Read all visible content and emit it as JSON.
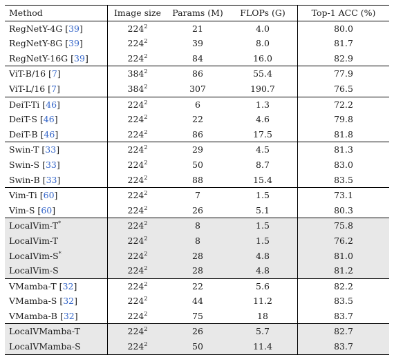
{
  "table": {
    "headers": [
      "Method",
      "Image size",
      "Params (M)",
      "FLOPs (G)",
      "Top-1 ACC (%)"
    ],
    "groups": [
      {
        "shaded": false,
        "rows": [
          {
            "method": "RegNetY-4G",
            "ref": "39",
            "star": "",
            "size_base": "224",
            "size_exp": "2",
            "params": "21",
            "flops": "4.0",
            "acc": "80.0"
          },
          {
            "method": "RegNetY-8G",
            "ref": "39",
            "star": "",
            "size_base": "224",
            "size_exp": "2",
            "params": "39",
            "flops": "8.0",
            "acc": "81.7"
          },
          {
            "method": "RegNetY-16G",
            "ref": "39",
            "star": "",
            "size_base": "224",
            "size_exp": "2",
            "params": "84",
            "flops": "16.0",
            "acc": "82.9"
          }
        ]
      },
      {
        "shaded": false,
        "rows": [
          {
            "method": "ViT-B/16",
            "ref": "7",
            "star": "",
            "size_base": "384",
            "size_exp": "2",
            "params": "86",
            "flops": "55.4",
            "acc": "77.9"
          },
          {
            "method": "ViT-L/16",
            "ref": "7",
            "star": "",
            "size_base": "384",
            "size_exp": "2",
            "params": "307",
            "flops": "190.7",
            "acc": "76.5"
          }
        ]
      },
      {
        "shaded": false,
        "rows": [
          {
            "method": "DeiT-Ti",
            "ref": "46",
            "star": "",
            "size_base": "224",
            "size_exp": "2",
            "params": "6",
            "flops": "1.3",
            "acc": "72.2"
          },
          {
            "method": "DeiT-S",
            "ref": "46",
            "star": "",
            "size_base": "224",
            "size_exp": "2",
            "params": "22",
            "flops": "4.6",
            "acc": "79.8"
          },
          {
            "method": "DeiT-B",
            "ref": "46",
            "star": "",
            "size_base": "224",
            "size_exp": "2",
            "params": "86",
            "flops": "17.5",
            "acc": "81.8"
          }
        ]
      },
      {
        "shaded": false,
        "rows": [
          {
            "method": "Swin-T",
            "ref": "33",
            "star": "",
            "size_base": "224",
            "size_exp": "2",
            "params": "29",
            "flops": "4.5",
            "acc": "81.3"
          },
          {
            "method": "Swin-S",
            "ref": "33",
            "star": "",
            "size_base": "224",
            "size_exp": "2",
            "params": "50",
            "flops": "8.7",
            "acc": "83.0"
          },
          {
            "method": "Swin-B",
            "ref": "33",
            "star": "",
            "size_base": "224",
            "size_exp": "2",
            "params": "88",
            "flops": "15.4",
            "acc": "83.5"
          }
        ]
      },
      {
        "shaded": false,
        "rows": [
          {
            "method": "Vim-Ti",
            "ref": "60",
            "star": "",
            "size_base": "224",
            "size_exp": "2",
            "params": "7",
            "flops": "1.5",
            "acc": "73.1"
          },
          {
            "method": "Vim-S",
            "ref": "60",
            "star": "",
            "size_base": "224",
            "size_exp": "2",
            "params": "26",
            "flops": "5.1",
            "acc": "80.3"
          }
        ]
      },
      {
        "shaded": true,
        "rows": [
          {
            "method": "LocalVim-T",
            "ref": "",
            "star": "*",
            "size_base": "224",
            "size_exp": "2",
            "params": "8",
            "flops": "1.5",
            "acc": "75.8"
          },
          {
            "method": "LocalVim-T",
            "ref": "",
            "star": "",
            "size_base": "224",
            "size_exp": "2",
            "params": "8",
            "flops": "1.5",
            "acc": "76.2"
          },
          {
            "method": "LocalVim-S",
            "ref": "",
            "star": "*",
            "size_base": "224",
            "size_exp": "2",
            "params": "28",
            "flops": "4.8",
            "acc": "81.0"
          },
          {
            "method": "LocalVim-S",
            "ref": "",
            "star": "",
            "size_base": "224",
            "size_exp": "2",
            "params": "28",
            "flops": "4.8",
            "acc": "81.2"
          }
        ]
      },
      {
        "shaded": false,
        "rows": [
          {
            "method": "VMamba-T",
            "ref": "32",
            "star": "",
            "size_base": "224",
            "size_exp": "2",
            "params": "22",
            "flops": "5.6",
            "acc": "82.2"
          },
          {
            "method": "VMamba-S",
            "ref": "32",
            "star": "",
            "size_base": "224",
            "size_exp": "2",
            "params": "44",
            "flops": "11.2",
            "acc": "83.5"
          },
          {
            "method": "VMamba-B",
            "ref": "32",
            "star": "",
            "size_base": "224",
            "size_exp": "2",
            "params": "75",
            "flops": "18",
            "acc": "83.7"
          }
        ]
      },
      {
        "shaded": true,
        "rows": [
          {
            "method": "LocalVMamba-T",
            "ref": "",
            "star": "",
            "size_base": "224",
            "size_exp": "2",
            "params": "26",
            "flops": "5.7",
            "acc": "82.7"
          },
          {
            "method": "LocalVMamba-S",
            "ref": "",
            "star": "",
            "size_base": "224",
            "size_exp": "2",
            "params": "50",
            "flops": "11.4",
            "acc": "83.7"
          }
        ]
      }
    ]
  }
}
